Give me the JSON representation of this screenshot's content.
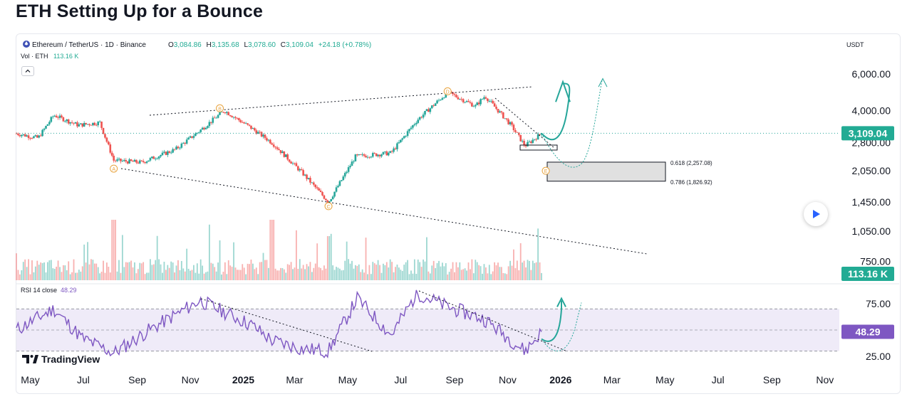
{
  "headline": "ETH Setting Up for a Bounce",
  "symbol": {
    "name": "Ethereum / TetherUS · 1D · Binance",
    "o_label": "O",
    "o": "3,084.86",
    "h_label": "H",
    "h": "3,135.68",
    "l_label": "L",
    "l": "3,078.60",
    "c_label": "C",
    "c": "3,109.04",
    "change": "+24.18 (+0.78%)"
  },
  "volume": {
    "label": "Vol · ETH",
    "value": "113.16 K",
    "badge": "113.16 K"
  },
  "currency": "USDT",
  "last_price_badge": "3,109.04",
  "rsi": {
    "label": "RSI 14 close",
    "value": "48.29",
    "badge": "48.29"
  },
  "logo": "TradingView",
  "fib": {
    "upper": "0.618 (2,257.08)",
    "lower": "0.786 (1,826.92)"
  },
  "waves": [
    "A",
    "B",
    "C",
    "D",
    "E"
  ],
  "colors": {
    "up": "#26a69a",
    "down": "#ef5350",
    "rsi": "#7e57c2",
    "wave": "#e8a33d",
    "badge": "#22ab94"
  },
  "chart_data": [
    {
      "type": "candlestick",
      "title": "Ethereum / TetherUS · 1D · Binance",
      "scale": "log",
      "y_ticks": [
        "6,000.00",
        "4,000.00",
        "2,800.00",
        "2,050.00",
        "1,450.00",
        "1,050.00",
        "750.00"
      ],
      "y_tick_values": [
        6000,
        4000,
        2800,
        2050,
        1450,
        1050,
        750
      ],
      "x_ticks": [
        "May",
        "Jul",
        "Sep",
        "Nov",
        "2025",
        "Mar",
        "May",
        "Jul",
        "Sep",
        "Nov",
        "2026",
        "Mar",
        "May",
        "Jul",
        "Sep",
        "Nov"
      ],
      "price_path": [
        {
          "date": "2024-04-15",
          "close": 3100
        },
        {
          "date": "2024-05-10",
          "close": 2950
        },
        {
          "date": "2024-05-28",
          "close": 3800
        },
        {
          "date": "2024-06-25",
          "close": 3400
        },
        {
          "date": "2024-07-20",
          "close": 3500
        },
        {
          "date": "2024-08-05",
          "close": 2300
        },
        {
          "date": "2024-09-06",
          "close": 2250
        },
        {
          "date": "2024-10-15",
          "close": 2600
        },
        {
          "date": "2024-11-12",
          "close": 3200
        },
        {
          "date": "2024-12-10",
          "close": 4000
        },
        {
          "date": "2025-01-10",
          "close": 3300
        },
        {
          "date": "2025-02-03",
          "close": 2800
        },
        {
          "date": "2025-03-10",
          "close": 2000
        },
        {
          "date": "2025-04-09",
          "close": 1450
        },
        {
          "date": "2025-05-10",
          "close": 2400
        },
        {
          "date": "2025-06-20",
          "close": 2500
        },
        {
          "date": "2025-07-20",
          "close": 3600
        },
        {
          "date": "2025-08-24",
          "close": 4900
        },
        {
          "date": "2025-09-25",
          "close": 4200
        },
        {
          "date": "2025-10-06",
          "close": 4700
        },
        {
          "date": "2025-11-05",
          "close": 3400
        },
        {
          "date": "2025-11-21",
          "close": 2700
        },
        {
          "date": "2025-12-10",
          "close": 3109.04
        }
      ],
      "wave_points": [
        {
          "label": "A",
          "date": "2024-08-05",
          "price": 2100
        },
        {
          "label": "B",
          "date": "2024-12-05",
          "price": 4100
        },
        {
          "label": "C",
          "date": "2025-04-09",
          "price": 1385
        },
        {
          "label": "D",
          "date": "2025-08-24",
          "price": 4950
        },
        {
          "label": "E",
          "date": "2026-01-20",
          "price": 2050
        }
      ],
      "fib_zone": {
        "upper": 2257.08,
        "lower": 1826.92
      },
      "projection_up": {
        "from": "2025-12-10",
        "to": "2026-01-15",
        "price": 5200
      },
      "projection_alt": {
        "from": "2025-12-10",
        "via": "2026-01-20",
        "to": "2026-02-25",
        "price": 5600
      },
      "last_close": 3109.04
    },
    {
      "type": "line",
      "title": "RSI 14 close",
      "y_ticks": [
        "75.00",
        "25.00"
      ],
      "y_tick_values": [
        75,
        25
      ],
      "band": [
        70,
        30
      ],
      "last": 48.29,
      "rsi_path": [
        {
          "date": "2024-04-15",
          "v": 50
        },
        {
          "date": "2024-05-28",
          "v": 70
        },
        {
          "date": "2024-06-30",
          "v": 42
        },
        {
          "date": "2024-08-05",
          "v": 28
        },
        {
          "date": "2024-09-15",
          "v": 50
        },
        {
          "date": "2024-11-12",
          "v": 78
        },
        {
          "date": "2025-01-10",
          "v": 55
        },
        {
          "date": "2025-02-03",
          "v": 40
        },
        {
          "date": "2025-03-10",
          "v": 32
        },
        {
          "date": "2025-04-09",
          "v": 30
        },
        {
          "date": "2025-05-12",
          "v": 80
        },
        {
          "date": "2025-06-20",
          "v": 45
        },
        {
          "date": "2025-07-20",
          "v": 85
        },
        {
          "date": "2025-08-24",
          "v": 72
        },
        {
          "date": "2025-10-06",
          "v": 60
        },
        {
          "date": "2025-11-21",
          "v": 30
        },
        {
          "date": "2025-12-10",
          "v": 48.29
        }
      ]
    }
  ]
}
